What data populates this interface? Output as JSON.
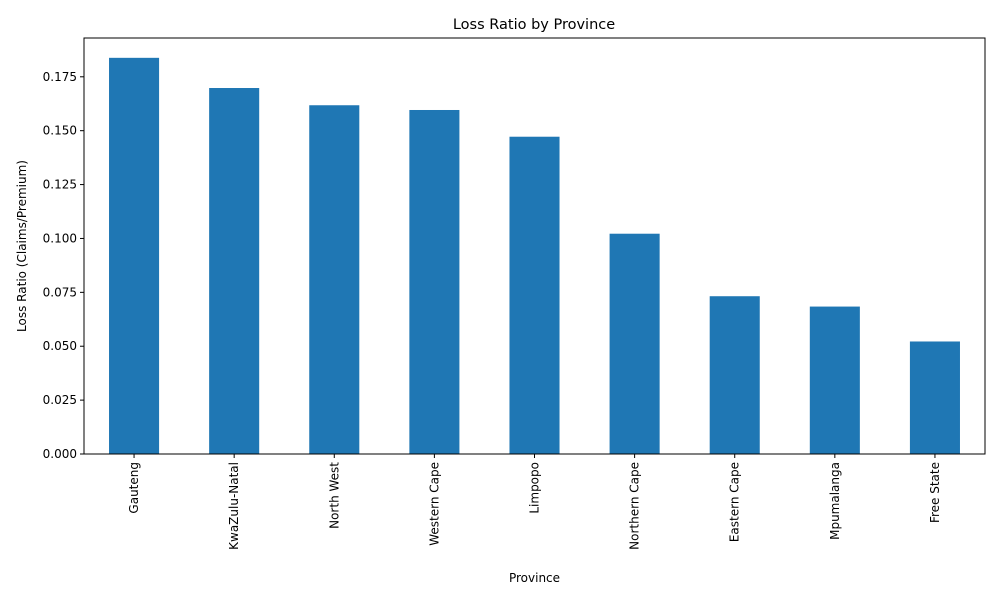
{
  "chart_data": {
    "type": "bar",
    "title": "Loss Ratio by Province",
    "xlabel": "Province",
    "ylabel": "Loss Ratio (Claims/Premium)",
    "categories": [
      "Gauteng",
      "KwaZulu-Natal",
      "North West",
      "Western Cape",
      "Limpopo",
      "Northern Cape",
      "Eastern Cape",
      "Mpumalanga",
      "Free State"
    ],
    "values": [
      0.1838,
      0.1698,
      0.1618,
      0.1596,
      0.1472,
      0.1022,
      0.0732,
      0.0684,
      0.0522
    ],
    "ylim": [
      0,
      0.193
    ],
    "yticks": [
      "0.000",
      "0.025",
      "0.050",
      "0.075",
      "0.100",
      "0.125",
      "0.150",
      "0.175"
    ],
    "ytick_values": [
      0,
      0.025,
      0.05,
      0.075,
      0.1,
      0.125,
      0.15,
      0.175
    ],
    "grid": false,
    "legend": "none",
    "bar_color": "#1f77b4"
  }
}
